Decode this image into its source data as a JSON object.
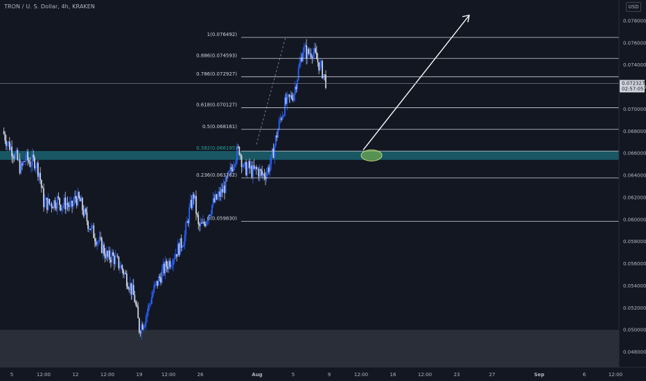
{
  "header": {
    "symbol_title": "TRON / U. S. Dollar, 4h, KRAKEN",
    "currency": "USD"
  },
  "colors": {
    "background": "#131722",
    "candle_up": "#2962ff",
    "candle_down": "#d1d4dc",
    "fib_line": "#d1d4dc",
    "zone_fill": "#1b6e7a",
    "zone_label": "#26a69a",
    "ellipse": "#8bc34a",
    "price_tag_bg": "#d1d4dc",
    "lower_zone": "#2a2e39"
  },
  "chart_data": {
    "type": "candlestick",
    "symbol": "TRON / U. S. Dollar",
    "interval": "4h",
    "exchange": "KRAKEN",
    "y_range": [
      0.0465,
      0.0808
    ],
    "y_ticks": [
      "0.078000",
      "0.076000",
      "0.074000",
      "0.072000",
      "0.070000",
      "0.068000",
      "0.066000",
      "0.064000",
      "0.062000",
      "0.060000",
      "0.058000",
      "0.056000",
      "0.054000",
      "0.052000",
      "0.050000",
      "0.048000"
    ],
    "x_ticks": [
      "5",
      "12:00",
      "12",
      "12:00",
      "19",
      "12:00",
      "26",
      "Aug",
      "5",
      "9",
      "12:00",
      "16",
      "12:00",
      "23",
      "27",
      "Sep",
      "6",
      "12:00"
    ],
    "current_price": "0.072327",
    "countdown": "02:57:05",
    "fib_levels": [
      {
        "label": "1(0.076492)",
        "value": 0.076492
      },
      {
        "label": "0.886(0.074593)",
        "value": 0.074593
      },
      {
        "label": "0.786(0.072927)",
        "value": 0.072927
      },
      {
        "label": "0.618(0.070127)",
        "value": 0.070127
      },
      {
        "label": "0.5(0.068161)",
        "value": 0.068161
      },
      {
        "label": "0.382(0.066195)",
        "value": 0.066195
      },
      {
        "label": "0.236(0.063762)",
        "value": 0.063762
      },
      {
        "label": "0(0.059830)",
        "value": 0.05983
      }
    ],
    "zone": {
      "low": 0.0654,
      "high": 0.0662
    },
    "lower_zone": {
      "low": 0.0465,
      "high": 0.05
    },
    "price_path": [
      [
        0.0675,
        0.0685
      ],
      [
        0.0665,
        0.0675
      ],
      [
        0.066,
        0.0667
      ],
      [
        0.0652,
        0.066
      ],
      [
        0.064,
        0.065
      ],
      [
        0.065,
        0.0662
      ],
      [
        0.0658,
        0.0645
      ],
      [
        0.0648,
        0.0658
      ],
      [
        0.0638,
        0.0648
      ],
      [
        0.061,
        0.0622
      ],
      [
        0.0608,
        0.062
      ],
      [
        0.062,
        0.061
      ],
      [
        0.0612,
        0.0623
      ],
      [
        0.0618,
        0.0608
      ],
      [
        0.061,
        0.062
      ],
      [
        0.0605,
        0.0615
      ],
      [
        0.0615,
        0.0625
      ],
      [
        0.062,
        0.0612
      ],
      [
        0.0598,
        0.061
      ],
      [
        0.059,
        0.06
      ],
      [
        0.0582,
        0.0592
      ],
      [
        0.0575,
        0.0585
      ],
      [
        0.0568,
        0.058
      ],
      [
        0.057,
        0.056
      ],
      [
        0.0562,
        0.0572
      ],
      [
        0.0558,
        0.0566
      ],
      [
        0.0562,
        0.0552
      ],
      [
        0.0552,
        0.0545
      ],
      [
        0.0545,
        0.0535
      ],
      [
        0.0535,
        0.052
      ],
      [
        0.0508,
        0.0495
      ],
      [
        0.05,
        0.0515
      ],
      [
        0.051,
        0.053
      ],
      [
        0.0528,
        0.054
      ],
      [
        0.0538,
        0.0548
      ],
      [
        0.0548,
        0.0555
      ],
      [
        0.0555,
        0.0562
      ],
      [
        0.056,
        0.0568
      ],
      [
        0.0565,
        0.0575
      ],
      [
        0.0572,
        0.058
      ],
      [
        0.058,
        0.059
      ],
      [
        0.0595,
        0.062
      ],
      [
        0.0615,
        0.063
      ],
      [
        0.0598,
        0.0588
      ],
      [
        0.059,
        0.0598
      ],
      [
        0.0598,
        0.061
      ],
      [
        0.0608,
        0.0618
      ],
      [
        0.0615,
        0.0622
      ],
      [
        0.062,
        0.0628
      ],
      [
        0.0625,
        0.0638
      ],
      [
        0.0635,
        0.065
      ],
      [
        0.0648,
        0.0665
      ],
      [
        0.066,
        0.0668
      ],
      [
        0.065,
        0.064
      ],
      [
        0.0642,
        0.0652
      ],
      [
        0.0648,
        0.0638
      ],
      [
        0.064,
        0.065
      ],
      [
        0.0645,
        0.0635
      ],
      [
        0.0638,
        0.0648
      ],
      [
        0.0645,
        0.066
      ],
      [
        0.0665,
        0.068
      ],
      [
        0.0682,
        0.07
      ],
      [
        0.07,
        0.0708
      ],
      [
        0.0705,
        0.0712
      ],
      [
        0.071,
        0.072
      ],
      [
        0.0725,
        0.0745
      ],
      [
        0.0748,
        0.0762
      ],
      [
        0.0755,
        0.0745
      ],
      [
        0.0748,
        0.0758
      ],
      [
        0.075,
        0.074
      ],
      [
        0.0742,
        0.0732
      ],
      [
        0.0728,
        0.0723
      ]
    ]
  }
}
